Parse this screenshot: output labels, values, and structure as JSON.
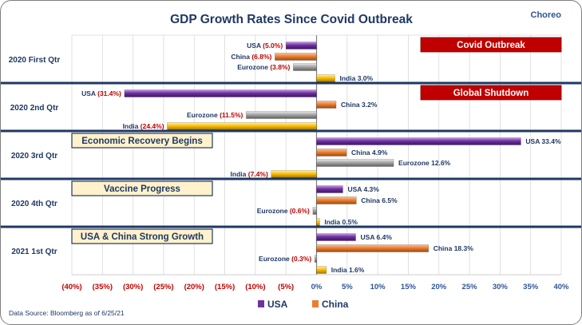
{
  "brand": "Choreo",
  "source": "Data Source: Bloomberg as of 6/25/21",
  "chart_data": {
    "type": "bar",
    "orientation": "horizontal",
    "title": "GDP Growth Rates Since Covid Outbreak",
    "xlim": [
      -40,
      40
    ],
    "x_ticks": [
      {
        "value": -40,
        "label": "(40%)"
      },
      {
        "value": -35,
        "label": "(35%)"
      },
      {
        "value": -30,
        "label": "(30%)"
      },
      {
        "value": -25,
        "label": "(25%)"
      },
      {
        "value": -20,
        "label": "(20%)"
      },
      {
        "value": -15,
        "label": "(15%)"
      },
      {
        "value": -10,
        "label": "(10%)"
      },
      {
        "value": -5,
        "label": "(5%)"
      },
      {
        "value": 0,
        "label": "0%"
      },
      {
        "value": 5,
        "label": "5%"
      },
      {
        "value": 10,
        "label": "10%"
      },
      {
        "value": 15,
        "label": "15%"
      },
      {
        "value": 20,
        "label": "20%"
      },
      {
        "value": 25,
        "label": "25%"
      },
      {
        "value": 30,
        "label": "30%"
      },
      {
        "value": 35,
        "label": "35%"
      },
      {
        "value": 40,
        "label": "40%"
      }
    ],
    "grid": true,
    "legend": {
      "position": "bottom",
      "entries": [
        {
          "name": "USA",
          "color": "#7030a0"
        },
        {
          "name": "China",
          "color": "#ed7d31"
        }
      ]
    },
    "series_colors": {
      "USA": "#7030a0",
      "China": "#ed7d31",
      "Eurozone": "#a6a6a6",
      "India": "#ffc000"
    },
    "groups": [
      {
        "label": "2020 First Qtr",
        "annotation": {
          "text": "Covid Outbreak",
          "style": "red"
        },
        "bars": [
          {
            "series": "USA",
            "value": -5.0,
            "name": "USA",
            "value_label": "(5.0%)"
          },
          {
            "series": "China",
            "value": -6.8,
            "name": "China",
            "value_label": "(6.8%)"
          },
          {
            "series": "Eurozone",
            "value": -3.8,
            "name": "Eurozone",
            "value_label": "(3.8%)"
          },
          {
            "series": "India",
            "value": 3.0,
            "name": "India",
            "value_label": "3.0%"
          }
        ]
      },
      {
        "label": "2020 2nd Qtr",
        "annotation": {
          "text": "Global Shutdown",
          "style": "red"
        },
        "bars": [
          {
            "series": "USA",
            "value": -31.4,
            "name": "USA",
            "value_label": "(31.4%)"
          },
          {
            "series": "China",
            "value": 3.2,
            "name": "China",
            "value_label": "3.2%"
          },
          {
            "series": "Eurozone",
            "value": -11.5,
            "name": "Eurozone",
            "value_label": "(11.5%)"
          },
          {
            "series": "India",
            "value": -24.4,
            "name": "India",
            "value_label": "(24.4%)"
          }
        ]
      },
      {
        "label": "2020 3rd Qtr",
        "annotation": {
          "text": "Economic Recovery Begins",
          "style": "cream"
        },
        "bars": [
          {
            "series": "USA",
            "value": 33.4,
            "name": "USA",
            "value_label": "33.4%"
          },
          {
            "series": "China",
            "value": 4.9,
            "name": "China",
            "value_label": "4.9%"
          },
          {
            "series": "Eurozone",
            "value": 12.6,
            "name": "Eurozone",
            "value_label": "12.6%"
          },
          {
            "series": "India",
            "value": -7.4,
            "name": "India",
            "value_label": "(7.4%)"
          }
        ]
      },
      {
        "label": "2020 4th Qtr",
        "annotation": {
          "text": "Vaccine Progress",
          "style": "cream"
        },
        "bars": [
          {
            "series": "USA",
            "value": 4.3,
            "name": "USA",
            "value_label": "4.3%"
          },
          {
            "series": "China",
            "value": 6.5,
            "name": "China",
            "value_label": "6.5%"
          },
          {
            "series": "Eurozone",
            "value": -0.6,
            "name": "Eurozone",
            "value_label": "(0.6%)"
          },
          {
            "series": "India",
            "value": 0.5,
            "name": "India",
            "value_label": "0.5%"
          }
        ]
      },
      {
        "label": "2021 1st Qtr",
        "annotation": {
          "text": "USA & China Strong Growth",
          "style": "cream"
        },
        "bars": [
          {
            "series": "USA",
            "value": 6.4,
            "name": "USA",
            "value_label": "6.4%"
          },
          {
            "series": "China",
            "value": 18.3,
            "name": "China",
            "value_label": "18.3%"
          },
          {
            "series": "Eurozone",
            "value": -0.3,
            "name": "Eurozone",
            "value_label": "(0.3%)"
          },
          {
            "series": "India",
            "value": 1.6,
            "name": "India",
            "value_label": "1.6%"
          }
        ]
      }
    ]
  }
}
